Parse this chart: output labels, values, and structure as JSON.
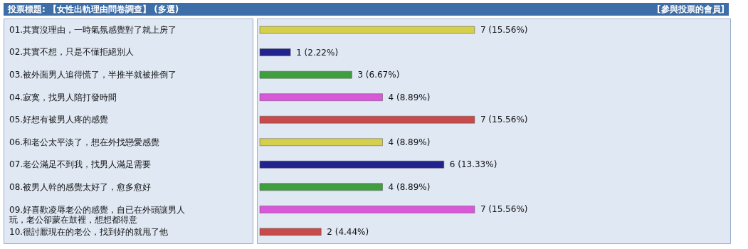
{
  "chart_data": {
    "type": "bar",
    "orientation": "horizontal",
    "title": "投票標題: 【女性出軌理由問卷調查】 (多選)",
    "annotations": [
      "[參與投票的會員]"
    ],
    "categories": [
      "01.其實沒理由，一時氣氛感覺對了就上房了",
      "02.其實不想，只是不懂拒絕別人",
      "03.被外面男人追得慌了，半推半就被推倒了",
      "04.寂寞，找男人陪打發時間",
      "05.好想有被男人疼的感覺",
      "06.和老公太平淡了，想在外找戀愛感覺",
      "07.老公滿足不到我，找男人滿足需要",
      "08.被男人幹的感覺太好了，愈多愈好",
      "09.好喜歡凌辱老公的感覺，自已在外頭讓男人玩，老公卻蒙在鼓裡，想想都得意",
      "10.很討厭現在的老公，找到好的就甩了他"
    ],
    "values": [
      7,
      1,
      3,
      4,
      7,
      4,
      6,
      4,
      7,
      2
    ],
    "colors": [
      "#d6cf4c",
      "#23238f",
      "#3f9f3f",
      "#d957d9",
      "#c94a4a",
      "#d6cf4c",
      "#23238f",
      "#3f9f3f",
      "#d957d9",
      "#c94a4a"
    ],
    "value_labels": [
      "7 (15.56%)",
      "1 (2.22%)",
      "3 (6.67%)",
      "4 (8.89%)",
      "7 (15.56%)",
      "4 (8.89%)",
      "6 (13.33%)",
      "4 (8.89%)",
      "7 (15.56%)",
      "2 (4.44%)"
    ]
  }
}
